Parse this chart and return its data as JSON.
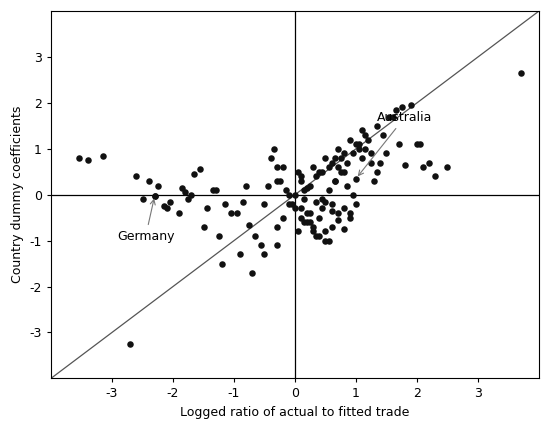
{
  "xlabel": "Logged ratio of actual to fitted trade",
  "ylabel": "Country dummy coefficients",
  "xlim": [
    -4,
    4
  ],
  "ylim": [
    -4,
    4
  ],
  "xticks": [
    -3,
    -2,
    -1,
    0,
    1,
    2,
    3
  ],
  "yticks": [
    -3,
    -2,
    -1,
    0,
    1,
    2,
    3
  ],
  "diagonal_color": "#555555",
  "dot_color": "#111111",
  "dot_size": 22,
  "germany_x": -2.3,
  "germany_y": -0.02,
  "germany_label": "Germany",
  "australia_x": 1.0,
  "australia_y": 0.35,
  "australia_label": "Australia",
  "scatter_x": [
    -3.4,
    -3.15,
    -2.6,
    -2.4,
    -2.3,
    -2.25,
    -2.15,
    -2.05,
    -1.85,
    -1.8,
    -1.75,
    -1.65,
    -1.55,
    -1.45,
    -1.35,
    -1.25,
    -1.15,
    -1.05,
    -0.95,
    -0.85,
    -0.75,
    -0.65,
    -0.55,
    -0.5,
    -0.45,
    -0.4,
    -0.35,
    -0.3,
    -0.25,
    -0.2,
    -0.15,
    -0.1,
    -0.05,
    0.0,
    0.05,
    0.1,
    0.15,
    0.2,
    0.25,
    0.3,
    0.35,
    0.4,
    0.45,
    0.5,
    0.55,
    0.6,
    0.65,
    0.7,
    0.75,
    0.8,
    0.85,
    0.9,
    0.95,
    1.0,
    1.05,
    1.1,
    1.15,
    1.2,
    1.25,
    1.3,
    1.35,
    1.4,
    1.5,
    1.6,
    1.65,
    1.7,
    1.8,
    1.9,
    2.0,
    2.1,
    2.2,
    2.3,
    2.5,
    3.7,
    -3.55,
    -2.7,
    -2.3,
    -2.1,
    -1.9,
    -1.5,
    -1.2,
    -0.9,
    -0.7,
    -0.5,
    -0.3,
    0.05,
    0.15,
    0.25,
    0.35,
    0.45,
    0.55,
    0.65,
    0.75,
    0.85,
    0.95,
    1.05,
    1.15,
    1.25,
    1.35,
    1.45,
    1.55,
    1.75,
    2.05,
    -2.5,
    -1.7,
    -1.3,
    -0.8,
    -0.3,
    0.1,
    0.3,
    0.5,
    0.7,
    0.9,
    1.1,
    0.1,
    0.2,
    0.3,
    0.4,
    0.5,
    0.6,
    0.7,
    0.8,
    0.9,
    1.0,
    0.15,
    0.25,
    0.35,
    0.45,
    0.55,
    0.65,
    0.5,
    0.6,
    0.7,
    0.8,
    -0.1,
    -0.2,
    -0.3,
    0.0,
    0.1,
    0.2,
    0.4,
    0.6,
    0.8,
    1.0
  ],
  "scatter_y": [
    0.75,
    0.85,
    0.4,
    0.3,
    -0.02,
    0.2,
    -0.25,
    -0.15,
    0.15,
    0.05,
    -0.1,
    0.45,
    0.55,
    -0.3,
    0.1,
    -0.9,
    -0.2,
    -0.4,
    -0.4,
    -0.15,
    -0.65,
    -0.9,
    -1.1,
    -0.2,
    0.2,
    0.8,
    1.0,
    0.6,
    0.3,
    0.6,
    0.1,
    0.0,
    -0.2,
    -0.3,
    0.5,
    0.3,
    -0.1,
    -0.4,
    -0.6,
    -0.7,
    -0.9,
    -0.5,
    -0.3,
    -0.8,
    -1.0,
    -0.2,
    0.3,
    0.6,
    0.8,
    0.5,
    0.2,
    -0.4,
    0.0,
    0.35,
    1.0,
    0.8,
    1.0,
    1.2,
    0.7,
    0.3,
    0.5,
    0.7,
    0.9,
    1.7,
    1.85,
    1.1,
    0.65,
    1.95,
    1.1,
    0.6,
    0.7,
    0.4,
    0.6,
    2.65,
    0.8,
    -3.25,
    -0.02,
    -0.3,
    -0.4,
    -0.7,
    -1.5,
    -1.3,
    -1.7,
    -1.3,
    -1.1,
    -0.8,
    -0.6,
    -0.4,
    -0.15,
    -0.1,
    0.1,
    0.3,
    0.5,
    0.7,
    0.9,
    1.1,
    1.3,
    0.9,
    1.5,
    1.3,
    1.7,
    1.9,
    1.1,
    -0.1,
    0.0,
    0.1,
    0.2,
    0.3,
    0.4,
    0.6,
    0.8,
    1.0,
    1.2,
    1.4,
    -0.5,
    -0.6,
    -0.8,
    -0.9,
    -1.0,
    -0.7,
    -0.4,
    -0.3,
    -0.5,
    -0.2,
    0.1,
    0.2,
    0.4,
    0.5,
    0.6,
    0.8,
    -0.15,
    -0.35,
    -0.55,
    -0.75,
    -0.2,
    -0.5,
    -0.7,
    0.0,
    -0.3,
    0.15,
    0.5,
    0.7,
    0.9,
    1.1
  ]
}
